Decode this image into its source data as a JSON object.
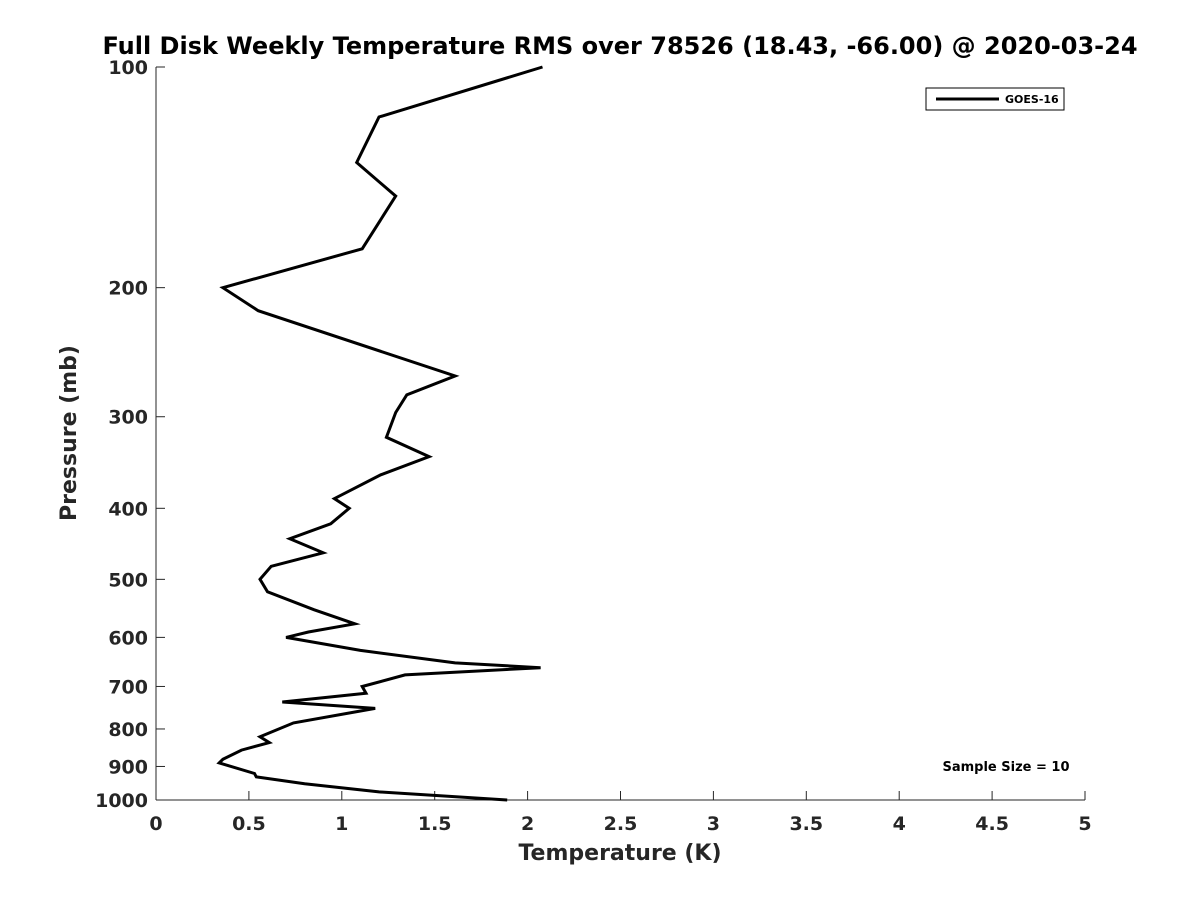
{
  "chart_data": {
    "type": "line",
    "title": "Full Disk Weekly Temperature RMS over 78526 (18.43, -66.00) @ 2020-03-24",
    "xlabel": "Temperature (K)",
    "ylabel": "Pressure (mb)",
    "xlim": [
      0,
      5
    ],
    "ylim": [
      1000,
      100
    ],
    "yscale": "log",
    "y_reversed": true,
    "grid": false,
    "legend_position": "top-right",
    "xticks": [
      0,
      0.5,
      1,
      1.5,
      2,
      2.5,
      3,
      3.5,
      4,
      4.5,
      5
    ],
    "xtick_labels": [
      "0",
      "0.5",
      "1",
      "1.5",
      "2",
      "2.5",
      "3",
      "3.5",
      "4",
      "4.5",
      "5"
    ],
    "yticks": [
      100,
      200,
      300,
      400,
      500,
      600,
      700,
      800,
      900,
      1000
    ],
    "ytick_labels": [
      "100",
      "200",
      "300",
      "400",
      "500",
      "600",
      "700",
      "800",
      "900",
      "1000"
    ],
    "series": [
      {
        "name": "GOES-16",
        "color": "#000000",
        "x": [
          2.08,
          1.2,
          1.08,
          1.29,
          1.11,
          0.36,
          0.55,
          1.61,
          1.35,
          1.29,
          1.24,
          1.47,
          1.21,
          0.96,
          1.04,
          0.94,
          0.72,
          0.9,
          0.62,
          0.56,
          0.6,
          0.85,
          1.07,
          0.82,
          0.7,
          1.1,
          1.61,
          2.07,
          1.34,
          1.11,
          1.13,
          0.68,
          1.18,
          0.74,
          0.56,
          0.61,
          0.46,
          0.36,
          0.34,
          0.53,
          0.54,
          0.8,
          1.2,
          1.89
        ],
        "y": [
          100,
          117,
          135,
          150,
          177,
          200,
          215,
          264,
          280,
          296,
          320,
          340,
          360,
          388,
          400,
          420,
          440,
          460,
          480,
          500,
          520,
          550,
          575,
          590,
          600,
          625,
          650,
          660,
          675,
          700,
          715,
          735,
          750,
          785,
          820,
          835,
          855,
          880,
          890,
          920,
          930,
          950,
          975,
          1000
        ]
      }
    ],
    "annotations": [
      "Sample Size = 10"
    ]
  }
}
